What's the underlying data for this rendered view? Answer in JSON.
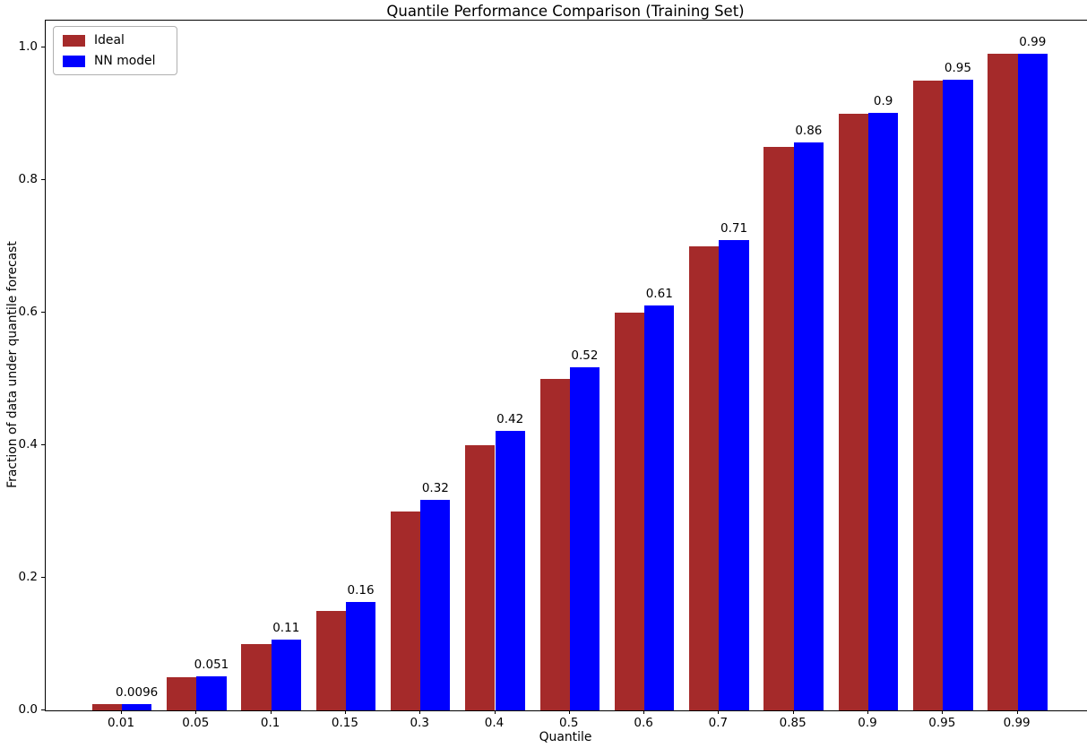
{
  "chart_data": {
    "type": "bar",
    "title": "Quantile Performance Comparison (Training Set)",
    "xlabel": "Quantile",
    "ylabel": "Fraction of data under quantile forecast",
    "categories": [
      "0.01",
      "0.05",
      "0.1",
      "0.15",
      "0.3",
      "0.4",
      "0.5",
      "0.6",
      "0.7",
      "0.85",
      "0.9",
      "0.95",
      "0.99"
    ],
    "series": [
      {
        "name": "Ideal",
        "color": "#A52A2A",
        "values": [
          0.01,
          0.05,
          0.1,
          0.15,
          0.3,
          0.4,
          0.5,
          0.6,
          0.7,
          0.85,
          0.9,
          0.95,
          0.99
        ]
      },
      {
        "name": "NN model",
        "color": "#0000FF",
        "values": [
          0.0096,
          0.051,
          0.107,
          0.163,
          0.318,
          0.421,
          0.517,
          0.611,
          0.709,
          0.857,
          0.902,
          0.951,
          0.991
        ],
        "bar_labels": [
          "0.0096",
          "0.051",
          "0.11",
          "0.16",
          "0.32",
          "0.42",
          "0.52",
          "0.61",
          "0.71",
          "0.86",
          "0.9",
          "0.95",
          "0.99"
        ]
      }
    ],
    "ylim": [
      0,
      1.04
    ],
    "yticks": [
      0.0,
      0.2,
      0.4,
      0.6,
      0.8,
      1.0
    ],
    "ytick_labels": [
      "0.0",
      "0.2",
      "0.4",
      "0.6",
      "0.8",
      "1.0"
    ],
    "grid": false,
    "legend_position": "upper left",
    "background_color": "#ffffff",
    "text_color": "#000000"
  }
}
